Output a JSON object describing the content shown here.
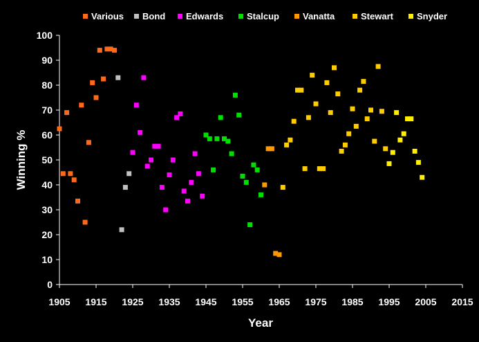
{
  "chart_data": {
    "type": "scatter",
    "xlabel": "Year",
    "ylabel": "Winning %",
    "xlim": [
      1905,
      2015
    ],
    "ylim": [
      0,
      100
    ],
    "xticks": [
      "1905",
      "1915",
      "1925",
      "1935",
      "1945",
      "1955",
      "1965",
      "1975",
      "1985",
      "1995",
      "2005",
      "2015"
    ],
    "yticks": [
      "0",
      "10",
      "20",
      "30",
      "40",
      "50",
      "60",
      "70",
      "80",
      "90",
      "100"
    ],
    "grid": false,
    "legend_position": "top",
    "series": [
      {
        "name": "Various",
        "color": "#ff6a1a",
        "points": [
          [
            1905,
            62.5
          ],
          [
            1907,
            69
          ],
          [
            1906,
            44.5
          ],
          [
            1908,
            44.5
          ],
          [
            1909,
            42
          ],
          [
            1910,
            33.5
          ],
          [
            1911,
            72
          ],
          [
            1912,
            25
          ],
          [
            1913,
            57
          ],
          [
            1914,
            81
          ],
          [
            1915,
            75
          ],
          [
            1916,
            94
          ],
          [
            1917,
            82.5
          ],
          [
            1918,
            94.5
          ],
          [
            1919,
            94.5
          ],
          [
            1920,
            94
          ]
        ]
      },
      {
        "name": "Bond",
        "color": "#c0c0c0",
        "points": [
          [
            1921,
            83
          ],
          [
            1922,
            22
          ],
          [
            1923,
            39
          ],
          [
            1924,
            44.5
          ]
        ]
      },
      {
        "name": "Edwards",
        "color": "#ff00ff",
        "points": [
          [
            1925,
            53
          ],
          [
            1926,
            72
          ],
          [
            1927,
            61
          ],
          [
            1928,
            83
          ],
          [
            1929,
            47.5
          ],
          [
            1930,
            50
          ],
          [
            1931,
            55.5
          ],
          [
            1932,
            55.5
          ],
          [
            1933,
            39
          ],
          [
            1934,
            30
          ],
          [
            1935,
            44
          ],
          [
            1936,
            50
          ],
          [
            1937,
            67
          ],
          [
            1938,
            68.5
          ],
          [
            1939,
            37.5
          ],
          [
            1940,
            33.5
          ],
          [
            1941,
            41
          ],
          [
            1942,
            52.5
          ],
          [
            1943,
            44.5
          ],
          [
            1944,
            35.5
          ]
        ]
      },
      {
        "name": "Stalcup",
        "color": "#00e000",
        "points": [
          [
            1945,
            60
          ],
          [
            1946,
            58.5
          ],
          [
            1947,
            46
          ],
          [
            1948,
            58.5
          ],
          [
            1949,
            67
          ],
          [
            1950,
            58.5
          ],
          [
            1951,
            57.5
          ],
          [
            1952,
            52.5
          ],
          [
            1953,
            76
          ],
          [
            1954,
            68
          ],
          [
            1955,
            43.5
          ],
          [
            1956,
            41
          ],
          [
            1957,
            24
          ],
          [
            1958,
            48
          ],
          [
            1959,
            46
          ],
          [
            1960,
            36
          ]
        ]
      },
      {
        "name": "Vanatta",
        "color": "#ff9900",
        "points": [
          [
            1961,
            40
          ],
          [
            1962,
            54.5
          ],
          [
            1963,
            54.5
          ],
          [
            1964,
            12.5
          ],
          [
            1965,
            12
          ]
        ]
      },
      {
        "name": "Stewart",
        "color": "#ffcc00",
        "points": [
          [
            1966,
            39
          ],
          [
            1967,
            56
          ],
          [
            1968,
            58
          ],
          [
            1969,
            65.5
          ],
          [
            1970,
            78
          ],
          [
            1971,
            78
          ],
          [
            1972,
            46.5
          ],
          [
            1973,
            67
          ],
          [
            1974,
            84
          ],
          [
            1975,
            72.5
          ],
          [
            1976,
            46.5
          ],
          [
            1977,
            46.5
          ],
          [
            1978,
            81
          ],
          [
            1979,
            69
          ],
          [
            1980,
            87
          ],
          [
            1981,
            76.5
          ],
          [
            1982,
            53.5
          ],
          [
            1983,
            56
          ],
          [
            1984,
            60.5
          ],
          [
            1985,
            70.5
          ],
          [
            1986,
            63.5
          ],
          [
            1987,
            78
          ],
          [
            1988,
            81.5
          ],
          [
            1989,
            66.5
          ],
          [
            1990,
            70
          ],
          [
            1991,
            57.5
          ],
          [
            1992,
            87.5
          ],
          [
            1993,
            69.5
          ],
          [
            1994,
            54.5
          ]
        ]
      },
      {
        "name": "Snyder",
        "color": "#ffee00",
        "points": [
          [
            1995,
            48.5
          ],
          [
            1996,
            53
          ],
          [
            1997,
            69
          ],
          [
            1998,
            58
          ],
          [
            1999,
            60.5
          ],
          [
            2000,
            66.5
          ],
          [
            2001,
            66.5
          ],
          [
            2002,
            53.5
          ],
          [
            2003,
            49
          ],
          [
            2004,
            43
          ]
        ]
      }
    ]
  }
}
